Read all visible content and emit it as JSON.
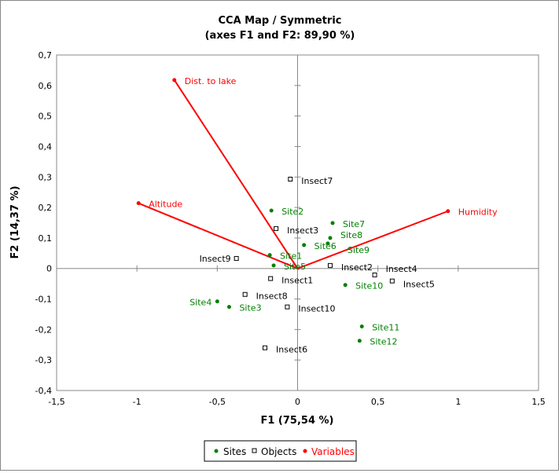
{
  "chart_data": {
    "type": "scatter",
    "title": "CCA Map / Symmetric",
    "subtitle": "(axes F1 and F2: 89,90 %)",
    "xlabel": "F1 (75,54 %)",
    "ylabel": "F2 (14,37 %)",
    "xlim": [
      -1.5,
      1.5
    ],
    "ylim": [
      -0.4,
      0.7
    ],
    "xticks": [
      "-1,5",
      "-1",
      "-0,5",
      "0",
      "0,5",
      "1",
      "1,5"
    ],
    "xtick_values": [
      -1.5,
      -1,
      -0.5,
      0,
      0.5,
      1,
      1.5
    ],
    "yticks": [
      "-0,4",
      "-0,3",
      "-0,2",
      "-0,1",
      "0",
      "0,1",
      "0,2",
      "0,3",
      "0,4",
      "0,5",
      "0,6",
      "0,7"
    ],
    "ytick_values": [
      -0.4,
      -0.3,
      -0.2,
      -0.1,
      0,
      0.1,
      0.2,
      0.3,
      0.4,
      0.5,
      0.6,
      0.7
    ],
    "legend_position": "bottom",
    "colors": {
      "sites": "#008000",
      "objects": "#000000",
      "variables": "#ff0000"
    },
    "series": [
      {
        "name": "Sites",
        "marker": "dot",
        "points": [
          {
            "label": "Site1",
            "x": -0.173,
            "y": 0.044
          },
          {
            "label": "Site2",
            "x": -0.163,
            "y": 0.19
          },
          {
            "label": "Site3",
            "x": -0.426,
            "y": -0.126
          },
          {
            "label": "Site4",
            "x": -0.5,
            "y": -0.108
          },
          {
            "label": "Site5",
            "x": -0.149,
            "y": 0.01
          },
          {
            "label": "Site6",
            "x": 0.04,
            "y": 0.077
          },
          {
            "label": "Site7",
            "x": 0.218,
            "y": 0.149
          },
          {
            "label": "Site8",
            "x": 0.203,
            "y": 0.1
          },
          {
            "label": "Site9",
            "x": 0.188,
            "y": 0.082
          },
          {
            "label": "Site10",
            "x": 0.297,
            "y": -0.054
          },
          {
            "label": "Site11",
            "x": 0.4,
            "y": -0.19
          },
          {
            "label": "Site12",
            "x": 0.386,
            "y": -0.237
          }
        ]
      },
      {
        "name": "Objects",
        "marker": "square",
        "points": [
          {
            "label": "Insect1",
            "x": -0.168,
            "y": -0.033
          },
          {
            "label": "Insect2",
            "x": 0.203,
            "y": 0.01
          },
          {
            "label": "Insect3",
            "x": -0.134,
            "y": 0.131
          },
          {
            "label": "Insect4",
            "x": 0.48,
            "y": -0.021
          },
          {
            "label": "Insect5",
            "x": 0.589,
            "y": -0.041
          },
          {
            "label": "Insect6",
            "x": -0.203,
            "y": -0.26
          },
          {
            "label": "Insect7",
            "x": -0.045,
            "y": 0.293
          },
          {
            "label": "Insect8",
            "x": -0.327,
            "y": -0.085
          },
          {
            "label": "Insect9",
            "x": -0.381,
            "y": 0.033
          },
          {
            "label": "Insect10",
            "x": -0.064,
            "y": -0.126
          }
        ]
      },
      {
        "name": "Variables",
        "marker": "vector",
        "points": [
          {
            "label": "Dist. to lake",
            "x": -0.767,
            "y": 0.618
          },
          {
            "label": "Altitude",
            "x": -0.99,
            "y": 0.214
          },
          {
            "label": "Humidity",
            "x": 0.936,
            "y": 0.188
          }
        ]
      }
    ]
  }
}
